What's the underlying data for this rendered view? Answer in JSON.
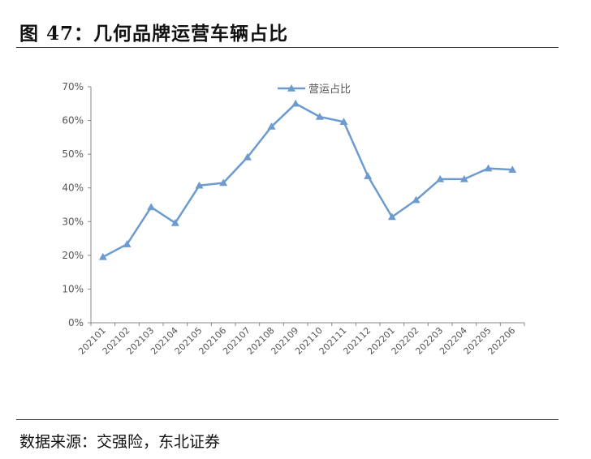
{
  "figure": {
    "title": "图 47：几何品牌运营车辆占比",
    "source": "数据来源：交强险，东北证券"
  },
  "chart_data": {
    "type": "line",
    "title": "",
    "xlabel": "",
    "ylabel": "",
    "categories": [
      "202101",
      "202102",
      "202103",
      "202104",
      "202105",
      "202106",
      "202107",
      "202108",
      "202109",
      "202110",
      "202111",
      "202112",
      "202201",
      "202202",
      "202203",
      "202204",
      "202205",
      "202206"
    ],
    "series": [
      {
        "name": "营运占比",
        "values": [
          0.195,
          0.233,
          0.343,
          0.296,
          0.407,
          0.415,
          0.491,
          0.582,
          0.65,
          0.611,
          0.596,
          0.435,
          0.314,
          0.364,
          0.426,
          0.426,
          0.458,
          0.454
        ],
        "color": "#6d9bd0"
      }
    ],
    "ylim": [
      0,
      0.7
    ],
    "yticks": [
      "0%",
      "10%",
      "20%",
      "30%",
      "40%",
      "50%",
      "60%",
      "70%"
    ],
    "grid": false,
    "legend": "top-center"
  }
}
